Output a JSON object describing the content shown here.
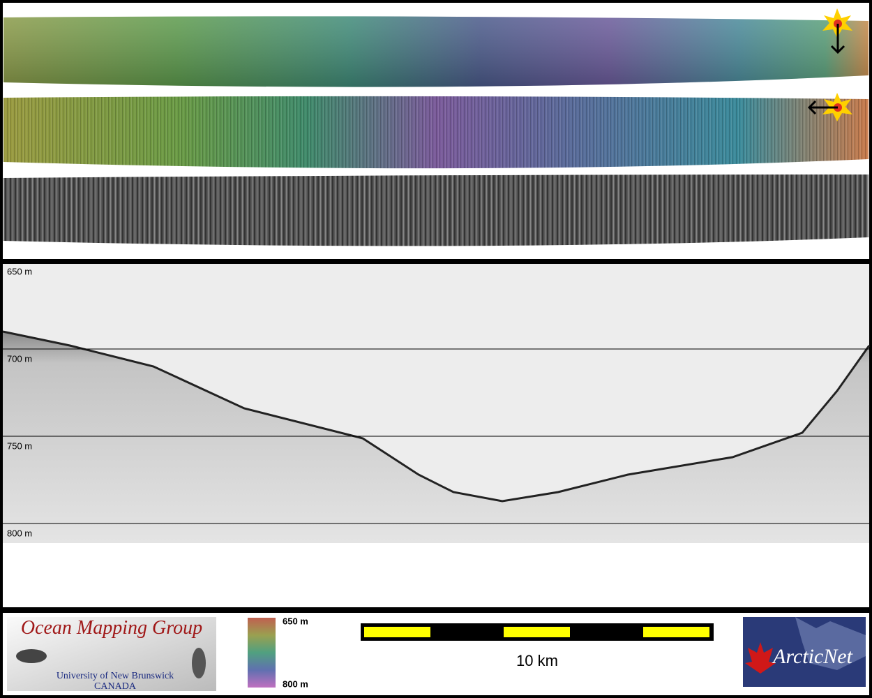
{
  "profile": {
    "depth_labels": [
      "650 m",
      "700 m",
      "750 m",
      "800 m"
    ]
  },
  "legend": {
    "logo_left": {
      "title": "Ocean Mapping Group",
      "line1": "University of New Brunswick",
      "line2": "CANADA"
    },
    "colorbar": {
      "top_label": "650 m",
      "bottom_label": "800 m"
    },
    "scale_bar": {
      "label": "10 km"
    },
    "logo_right": {
      "title": "ArcticNet"
    }
  }
}
